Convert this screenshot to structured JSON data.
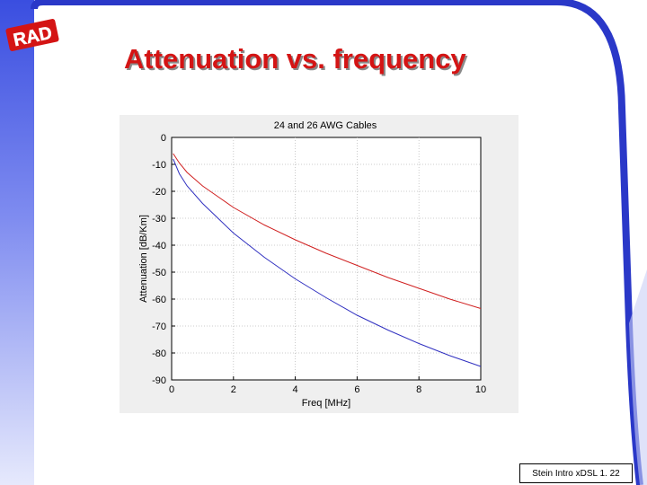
{
  "logo": {
    "text": "RAD"
  },
  "slide": {
    "title": "Attenuation vs. frequency"
  },
  "footer": {
    "text": "Stein Intro xDSL 1. 22"
  },
  "colors": {
    "title": "#d41414",
    "series_26awg": "#3030c0",
    "series_24awg": "#d02020",
    "accent_blue": "#2a38c8"
  },
  "chart_data": {
    "type": "line",
    "title": "24 and 26 AWG Cables",
    "xlabel": "Freq [MHz]",
    "ylabel": "Attenuation [dB/Km]",
    "xlim": [
      0,
      10
    ],
    "ylim": [
      -90,
      0
    ],
    "xticks": [
      0,
      2,
      4,
      6,
      8,
      10
    ],
    "yticks": [
      0,
      -10,
      -20,
      -30,
      -40,
      -50,
      -60,
      -70,
      -80,
      -90
    ],
    "grid": true,
    "series": [
      {
        "color": "#3030c0",
        "x": [
          0.05,
          0.25,
          0.5,
          1,
          1.5,
          2,
          3,
          4,
          5,
          6,
          7,
          8,
          9,
          10
        ],
        "y": [
          -8,
          -13.5,
          -18,
          -24.5,
          -30,
          -35.5,
          -44.5,
          -52.5,
          -59.5,
          -66,
          -71.5,
          -76.5,
          -81,
          -85
        ]
      },
      {
        "color": "#d02020",
        "x": [
          0.05,
          0.25,
          0.5,
          1,
          1.5,
          2,
          3,
          4,
          5,
          6,
          7,
          8,
          9,
          10
        ],
        "y": [
          -6,
          -9.5,
          -13,
          -18,
          -22,
          -26,
          -32.5,
          -38,
          -43,
          -47.5,
          -52,
          -56,
          -60,
          -63.5
        ]
      }
    ]
  }
}
